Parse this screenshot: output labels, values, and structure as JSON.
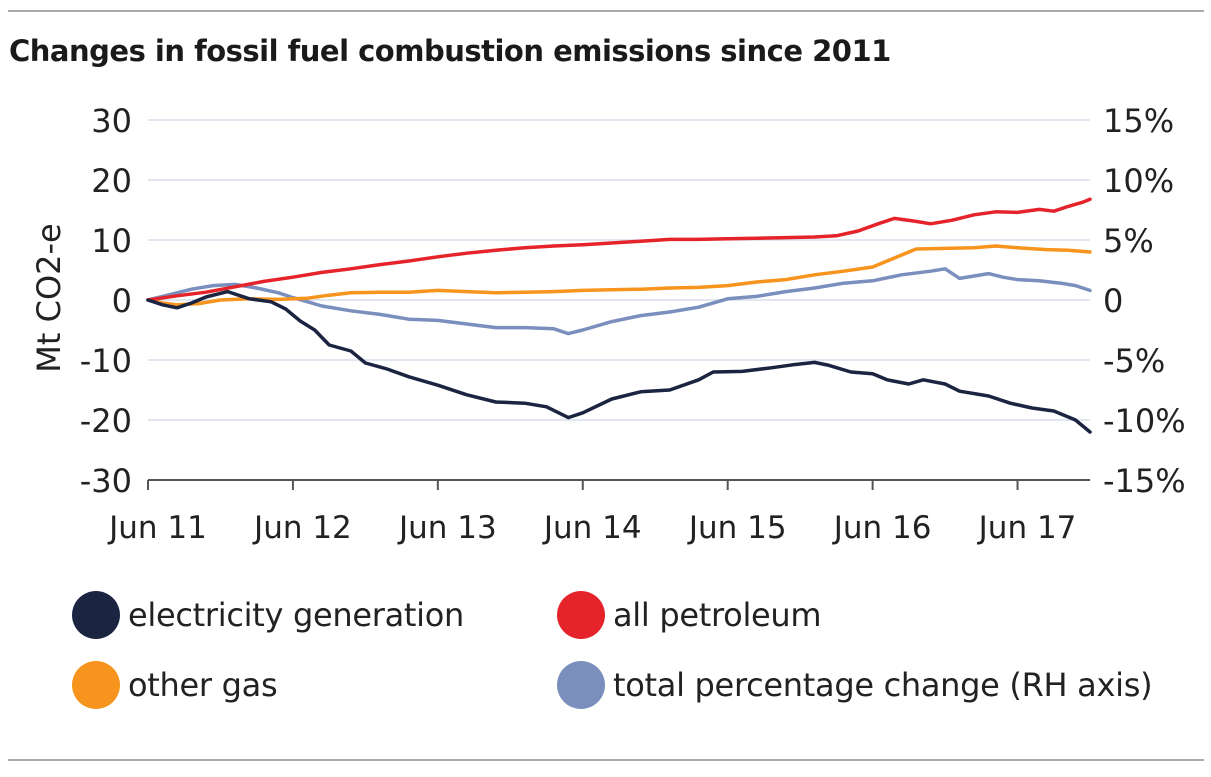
{
  "chart_data": {
    "type": "line",
    "title": "Changes in fossil fuel combustion emissions since 2011",
    "xlabel": "",
    "ylabel": "Mt CO2-e",
    "ylim": [
      -30,
      30
    ],
    "y_ticks": [
      "30",
      "20",
      "10",
      "0",
      "-10",
      "-20",
      "-30"
    ],
    "y2lim": [
      -15,
      15
    ],
    "y2_ticks": [
      "15%",
      "10%",
      "5%",
      "0",
      "-5%",
      "-10%",
      "-15%"
    ],
    "xlim": [
      2011.5,
      2018.0
    ],
    "x_ticks": [
      {
        "label": "Jun 11",
        "value": 2011.5
      },
      {
        "label": "Jun 12",
        "value": 2012.5
      },
      {
        "label": "Jun 13",
        "value": 2013.5
      },
      {
        "label": "Jun 14",
        "value": 2014.5
      },
      {
        "label": "Jun 15",
        "value": 2015.5
      },
      {
        "label": "Jun 16",
        "value": 2016.5
      },
      {
        "label": "Jun 17",
        "value": 2017.5
      }
    ],
    "grid": true,
    "series": [
      {
        "name": "total percentage change (RH axis)",
        "color": "#7a8fbd",
        "axis": "right",
        "points": [
          [
            2011.5,
            0.0
          ],
          [
            2011.6,
            0.3
          ],
          [
            2011.7,
            0.6
          ],
          [
            2011.8,
            0.9
          ],
          [
            2011.95,
            1.2
          ],
          [
            2012.1,
            1.3
          ],
          [
            2012.25,
            1.0
          ],
          [
            2012.4,
            0.6
          ],
          [
            2012.5,
            0.2
          ],
          [
            2012.7,
            -0.5
          ],
          [
            2012.9,
            -0.9
          ],
          [
            2013.1,
            -1.2
          ],
          [
            2013.3,
            -1.6
          ],
          [
            2013.5,
            -1.7
          ],
          [
            2013.7,
            -2.0
          ],
          [
            2013.9,
            -2.3
          ],
          [
            2014.1,
            -2.3
          ],
          [
            2014.3,
            -2.4
          ],
          [
            2014.4,
            -2.8
          ],
          [
            2014.5,
            -2.5
          ],
          [
            2014.7,
            -1.8
          ],
          [
            2014.9,
            -1.3
          ],
          [
            2015.1,
            -1.0
          ],
          [
            2015.3,
            -0.6
          ],
          [
            2015.5,
            0.1
          ],
          [
            2015.7,
            0.3
          ],
          [
            2015.9,
            0.7
          ],
          [
            2016.1,
            1.0
          ],
          [
            2016.3,
            1.4
          ],
          [
            2016.5,
            1.6
          ],
          [
            2016.7,
            2.1
          ],
          [
            2016.9,
            2.4
          ],
          [
            2017.0,
            2.6
          ],
          [
            2017.1,
            1.8
          ],
          [
            2017.2,
            2.0
          ],
          [
            2017.3,
            2.2
          ],
          [
            2017.4,
            1.9
          ],
          [
            2017.5,
            1.7
          ],
          [
            2017.65,
            1.6
          ],
          [
            2017.8,
            1.4
          ],
          [
            2017.9,
            1.2
          ],
          [
            2018.0,
            0.8
          ]
        ]
      },
      {
        "name": "other gas",
        "color": "#f7941d",
        "axis": "left",
        "points": [
          [
            2011.5,
            0.0
          ],
          [
            2011.6,
            -0.5
          ],
          [
            2011.7,
            -0.8
          ],
          [
            2011.85,
            -0.6
          ],
          [
            2012.0,
            0.0
          ],
          [
            2012.2,
            0.2
          ],
          [
            2012.4,
            0.1
          ],
          [
            2012.6,
            0.3
          ],
          [
            2012.75,
            0.8
          ],
          [
            2012.9,
            1.2
          ],
          [
            2013.1,
            1.3
          ],
          [
            2013.3,
            1.3
          ],
          [
            2013.5,
            1.6
          ],
          [
            2013.7,
            1.4
          ],
          [
            2013.9,
            1.2
          ],
          [
            2014.1,
            1.3
          ],
          [
            2014.3,
            1.4
          ],
          [
            2014.5,
            1.6
          ],
          [
            2014.7,
            1.7
          ],
          [
            2014.9,
            1.8
          ],
          [
            2015.1,
            2.0
          ],
          [
            2015.3,
            2.1
          ],
          [
            2015.5,
            2.4
          ],
          [
            2015.7,
            3.0
          ],
          [
            2015.9,
            3.4
          ],
          [
            2016.1,
            4.2
          ],
          [
            2016.3,
            4.8
          ],
          [
            2016.5,
            5.5
          ],
          [
            2016.65,
            7.0
          ],
          [
            2016.8,
            8.5
          ],
          [
            2017.0,
            8.6
          ],
          [
            2017.2,
            8.7
          ],
          [
            2017.35,
            9.0
          ],
          [
            2017.5,
            8.7
          ],
          [
            2017.7,
            8.4
          ],
          [
            2017.85,
            8.3
          ],
          [
            2018.0,
            8.0
          ]
        ]
      },
      {
        "name": "all petroleum",
        "color": "#e5232b",
        "axis": "left",
        "points": [
          [
            2011.5,
            0.0
          ],
          [
            2011.7,
            0.7
          ],
          [
            2011.9,
            1.3
          ],
          [
            2012.1,
            2.2
          ],
          [
            2012.3,
            3.1
          ],
          [
            2012.5,
            3.8
          ],
          [
            2012.7,
            4.6
          ],
          [
            2012.9,
            5.2
          ],
          [
            2013.1,
            5.9
          ],
          [
            2013.3,
            6.5
          ],
          [
            2013.5,
            7.2
          ],
          [
            2013.7,
            7.8
          ],
          [
            2013.9,
            8.3
          ],
          [
            2014.1,
            8.7
          ],
          [
            2014.3,
            9.0
          ],
          [
            2014.5,
            9.2
          ],
          [
            2014.7,
            9.5
          ],
          [
            2014.9,
            9.8
          ],
          [
            2015.1,
            10.1
          ],
          [
            2015.3,
            10.1
          ],
          [
            2015.5,
            10.2
          ],
          [
            2015.7,
            10.3
          ],
          [
            2015.9,
            10.4
          ],
          [
            2016.1,
            10.5
          ],
          [
            2016.25,
            10.7
          ],
          [
            2016.4,
            11.5
          ],
          [
            2016.55,
            12.8
          ],
          [
            2016.65,
            13.6
          ],
          [
            2016.8,
            13.1
          ],
          [
            2016.9,
            12.7
          ],
          [
            2017.05,
            13.3
          ],
          [
            2017.2,
            14.2
          ],
          [
            2017.35,
            14.7
          ],
          [
            2017.5,
            14.6
          ],
          [
            2017.65,
            15.1
          ],
          [
            2017.75,
            14.8
          ],
          [
            2017.85,
            15.6
          ],
          [
            2017.95,
            16.3
          ],
          [
            2018.0,
            16.8
          ]
        ]
      },
      {
        "name": "electricity generation",
        "color": "#1b2542",
        "axis": "left",
        "points": [
          [
            2011.5,
            0.0
          ],
          [
            2011.6,
            -0.8
          ],
          [
            2011.7,
            -1.3
          ],
          [
            2011.8,
            -0.5
          ],
          [
            2011.9,
            0.5
          ],
          [
            2012.05,
            1.4
          ],
          [
            2012.2,
            0.2
          ],
          [
            2012.35,
            -0.3
          ],
          [
            2012.45,
            -1.5
          ],
          [
            2012.55,
            -3.5
          ],
          [
            2012.65,
            -5.0
          ],
          [
            2012.75,
            -7.5
          ],
          [
            2012.9,
            -8.5
          ],
          [
            2013.0,
            -10.5
          ],
          [
            2013.15,
            -11.5
          ],
          [
            2013.3,
            -12.8
          ],
          [
            2013.5,
            -14.2
          ],
          [
            2013.7,
            -15.8
          ],
          [
            2013.9,
            -17.0
          ],
          [
            2014.1,
            -17.2
          ],
          [
            2014.25,
            -17.8
          ],
          [
            2014.4,
            -19.6
          ],
          [
            2014.5,
            -18.8
          ],
          [
            2014.7,
            -16.5
          ],
          [
            2014.9,
            -15.3
          ],
          [
            2015.1,
            -15.0
          ],
          [
            2015.3,
            -13.3
          ],
          [
            2015.4,
            -12.0
          ],
          [
            2015.6,
            -11.9
          ],
          [
            2015.8,
            -11.3
          ],
          [
            2015.95,
            -10.8
          ],
          [
            2016.1,
            -10.4
          ],
          [
            2016.2,
            -10.9
          ],
          [
            2016.35,
            -12.0
          ],
          [
            2016.5,
            -12.3
          ],
          [
            2016.6,
            -13.3
          ],
          [
            2016.75,
            -14.0
          ],
          [
            2016.85,
            -13.3
          ],
          [
            2017.0,
            -14.0
          ],
          [
            2017.1,
            -15.2
          ],
          [
            2017.3,
            -16.0
          ],
          [
            2017.45,
            -17.2
          ],
          [
            2017.6,
            -18.0
          ],
          [
            2017.75,
            -18.5
          ],
          [
            2017.9,
            -20.0
          ],
          [
            2018.0,
            -22.0
          ]
        ]
      }
    ],
    "legend": [
      {
        "name": "electricity generation",
        "color": "#1b2542"
      },
      {
        "name": "all petroleum",
        "color": "#e5232b"
      },
      {
        "name": "other gas",
        "color": "#f7941d"
      },
      {
        "name": "total percentage change (RH axis)",
        "color": "#7a8fbd"
      }
    ]
  }
}
